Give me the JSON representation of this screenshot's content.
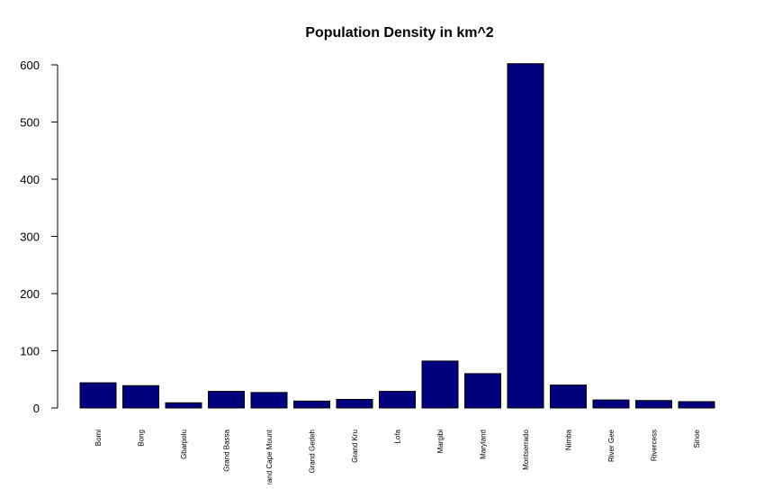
{
  "chart_data": {
    "type": "bar",
    "title": "Population Density in km^2",
    "xlabel": "",
    "ylabel": "",
    "categories": [
      "Bomi",
      "Bong",
      "Gbarpolu",
      "Grand Bassa",
      "Grand Cape Mount",
      "Grand Gedeh",
      "Grand Kru",
      "Lofa",
      "Margibi",
      "Maryland",
      "Montserrado",
      "Nimba",
      "River Gee",
      "Rivercess",
      "Sinoe"
    ],
    "values": [
      44,
      39,
      9,
      29,
      27,
      12,
      15,
      29,
      82,
      60,
      602,
      40,
      14,
      13,
      11
    ],
    "ylim": [
      0,
      600
    ],
    "yticks": [
      0,
      100,
      200,
      300,
      400,
      500,
      600
    ],
    "bar_color": "#00007f",
    "grid": false,
    "legend": "none"
  }
}
